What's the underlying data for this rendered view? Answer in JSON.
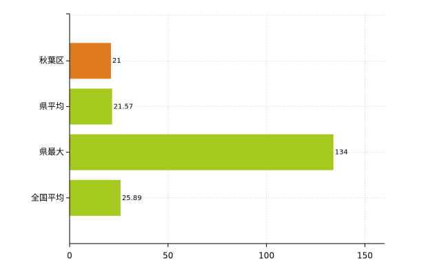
{
  "chart_data": {
    "type": "bar",
    "orientation": "horizontal",
    "categories": [
      "秋葉区",
      "県平均",
      "県最大",
      "全国平均"
    ],
    "values": [
      21,
      21.57,
      134,
      25.89
    ],
    "colors": [
      "#e07b22",
      "#a5c91f",
      "#a5c91f",
      "#a5c91f"
    ],
    "xlim": [
      0,
      160
    ],
    "xticks": [
      0,
      50,
      100,
      150
    ],
    "grid": true
  }
}
